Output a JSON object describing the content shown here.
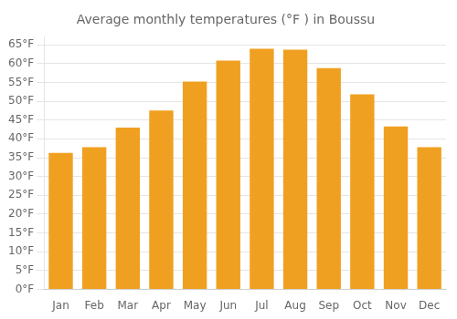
{
  "chart_data": {
    "type": "bar",
    "title": "Average monthly temperatures (°F ) in Boussu",
    "categories": [
      "Jan",
      "Feb",
      "Mar",
      "Apr",
      "May",
      "Jun",
      "Jul",
      "Aug",
      "Sep",
      "Oct",
      "Nov",
      "Dec"
    ],
    "values": [
      36.3,
      37.8,
      43.0,
      47.5,
      55.2,
      60.8,
      63.9,
      63.7,
      58.8,
      51.8,
      43.3,
      37.8
    ],
    "color": "#F0A020",
    "ylim": [
      0,
      67
    ],
    "yticks": [
      {
        "value": 0,
        "label": "0°F"
      },
      {
        "value": 5,
        "label": "5°F"
      },
      {
        "value": 10,
        "label": "10°F"
      },
      {
        "value": 15,
        "label": "15°F"
      },
      {
        "value": 20,
        "label": "20°F"
      },
      {
        "value": 25,
        "label": "25°F"
      },
      {
        "value": 30,
        "label": "30°F"
      },
      {
        "value": 35,
        "label": "35°F"
      },
      {
        "value": 40,
        "label": "40°F"
      },
      {
        "value": 45,
        "label": "45°F"
      },
      {
        "value": 50,
        "label": "50°F"
      },
      {
        "value": 55,
        "label": "55°F"
      },
      {
        "value": 60,
        "label": "60°F"
      },
      {
        "value": 65,
        "label": "65°F"
      }
    ],
    "grid": true
  }
}
